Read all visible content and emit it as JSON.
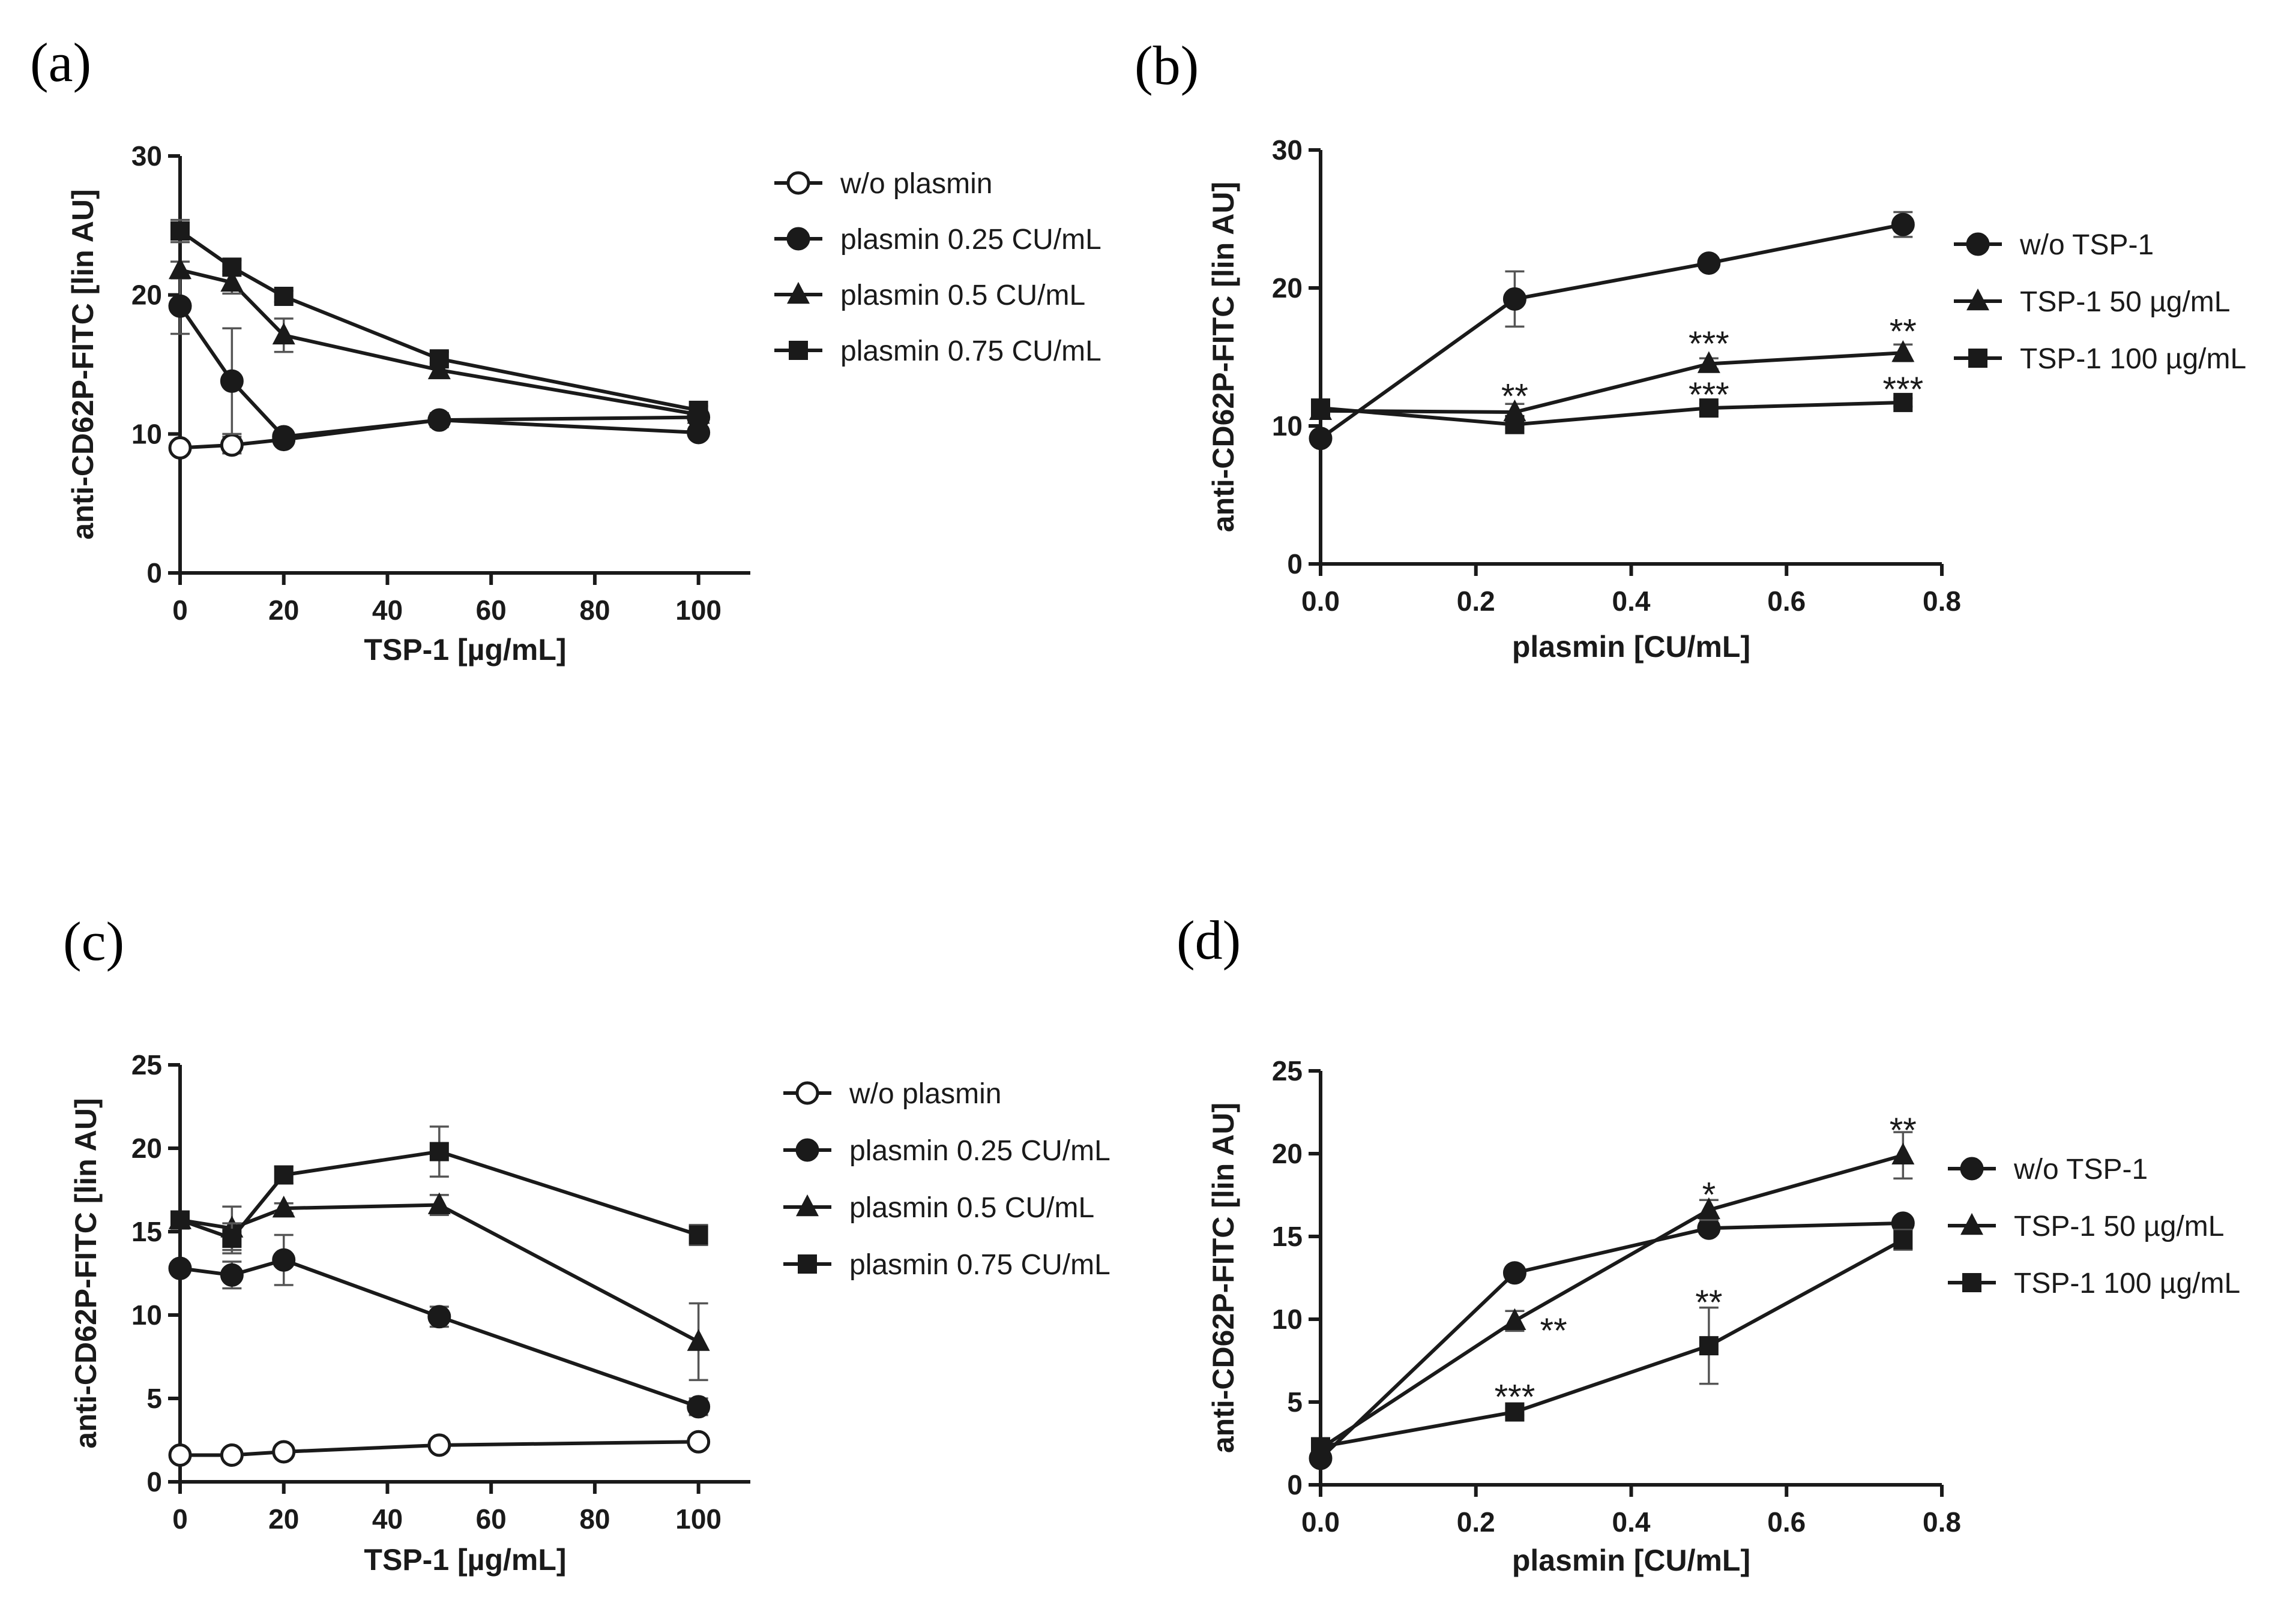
{
  "chart_data": [
    {
      "panel": "(a)",
      "type": "line",
      "xlabel": "TSP-1 [µg/mL]",
      "ylabel": "anti-CD62P-FITC [lin AU]",
      "xlim": [
        0,
        110
      ],
      "ylim": [
        0,
        30
      ],
      "xticks": [
        0,
        20,
        40,
        60,
        80,
        100
      ],
      "yticks": [
        0,
        10,
        20,
        30
      ],
      "series": [
        {
          "name": "w/o plasmin",
          "marker": "circle-open",
          "x": [
            0,
            10,
            20,
            50,
            100
          ],
          "y": [
            9.0,
            9.2,
            9.6,
            11.0,
            11.2
          ],
          "err": [
            0.3,
            0.6,
            0.3,
            0.5,
            0.3
          ]
        },
        {
          "name": "plasmin 0.25 CU/mL",
          "marker": "circle",
          "x": [
            0,
            10,
            20,
            50,
            100
          ],
          "y": [
            19.2,
            13.8,
            9.8,
            11.0,
            10.1
          ],
          "err": [
            2.0,
            3.8,
            0.4,
            0.5,
            0.3
          ]
        },
        {
          "name": "plasmin 0.5 CU/mL",
          "marker": "triangle",
          "x": [
            0,
            10,
            20,
            50,
            100
          ],
          "y": [
            21.8,
            20.9,
            17.1,
            14.6,
            11.4
          ],
          "err": [
            0.6,
            0.8,
            1.2,
            0.5,
            0.3
          ]
        },
        {
          "name": "plasmin 0.75 CU/mL",
          "marker": "square",
          "x": [
            0,
            10,
            20,
            50,
            100
          ],
          "y": [
            24.6,
            22.0,
            19.9,
            15.4,
            11.7
          ],
          "err": [
            0.8,
            0.5,
            0.4,
            0.5,
            0.3
          ]
        }
      ],
      "annotations": []
    },
    {
      "panel": "(b)",
      "type": "line",
      "xlabel": "plasmin [CU/mL]",
      "ylabel": "anti-CD62P-FITC [lin AU]",
      "xlim": [
        0,
        0.8
      ],
      "ylim": [
        0,
        30
      ],
      "xticks": [
        "0.0",
        "0.2",
        "0.4",
        "0.6",
        "0.8"
      ],
      "yticks": [
        0,
        10,
        20,
        30
      ],
      "series": [
        {
          "name": "w/o TSP-1",
          "marker": "circle",
          "x": [
            0,
            0.25,
            0.5,
            0.75
          ],
          "y": [
            9.1,
            19.2,
            21.8,
            24.6
          ],
          "err": [
            0.3,
            2.0,
            0.4,
            0.9
          ]
        },
        {
          "name": "TSP-1 50 µg/mL",
          "marker": "triangle",
          "x": [
            0,
            0.25,
            0.5,
            0.75
          ],
          "y": [
            11.1,
            11.0,
            14.5,
            15.3
          ],
          "err": [
            0.3,
            0.6,
            0.4,
            0.6
          ]
        },
        {
          "name": "TSP-1 100 µg/mL",
          "marker": "square",
          "x": [
            0,
            0.25,
            0.5,
            0.75
          ],
          "y": [
            11.3,
            10.1,
            11.3,
            11.7
          ],
          "err": [
            0.3,
            0.3,
            0.3,
            0.3
          ]
        }
      ],
      "annotations": [
        {
          "text": "**",
          "x": 0.25,
          "y": 12.5
        },
        {
          "text": "***",
          "x": 0.5,
          "y": 16.3
        },
        {
          "text": "**",
          "x": 0.75,
          "y": 17.2
        },
        {
          "text": "***",
          "x": 0.5,
          "y": 12.6
        },
        {
          "text": "***",
          "x": 0.75,
          "y": 13.0
        }
      ]
    },
    {
      "panel": "(c)",
      "type": "line",
      "xlabel": "TSP-1 [µg/mL]",
      "ylabel": "anti-CD62P-FITC [lin AU]",
      "xlim": [
        0,
        110
      ],
      "ylim": [
        0,
        25
      ],
      "xticks": [
        0,
        20,
        40,
        60,
        80,
        100
      ],
      "yticks": [
        0,
        5,
        10,
        15,
        20,
        25
      ],
      "series": [
        {
          "name": "w/o plasmin",
          "marker": "circle-open",
          "x": [
            0,
            10,
            20,
            50,
            100
          ],
          "y": [
            1.6,
            1.6,
            1.8,
            2.2,
            2.4
          ],
          "err": [
            0.1,
            0.1,
            0.1,
            0.1,
            0.1
          ]
        },
        {
          "name": "plasmin 0.25 CU/mL",
          "marker": "circle",
          "x": [
            0,
            10,
            20,
            50,
            100
          ],
          "y": [
            12.8,
            12.4,
            13.3,
            9.9,
            4.5
          ],
          "err": [
            0.3,
            0.8,
            1.5,
            0.6,
            0.5
          ]
        },
        {
          "name": "plasmin 0.5 CU/mL",
          "marker": "triangle",
          "x": [
            0,
            10,
            20,
            50,
            100
          ],
          "y": [
            15.7,
            15.2,
            16.4,
            16.6,
            8.4
          ],
          "err": [
            0.3,
            1.3,
            0.3,
            0.6,
            2.3
          ]
        },
        {
          "name": "plasmin 0.75 CU/mL",
          "marker": "square",
          "x": [
            0,
            10,
            20,
            50,
            100
          ],
          "y": [
            15.7,
            14.6,
            18.4,
            19.8,
            14.8
          ],
          "err": [
            0.3,
            0.9,
            0.5,
            1.5,
            0.6
          ]
        }
      ],
      "annotations": []
    },
    {
      "panel": "(d)",
      "type": "line",
      "xlabel": "plasmin [CU/mL]",
      "ylabel": "anti-CD62P-FITC [lin AU]",
      "xlim": [
        0,
        0.8
      ],
      "ylim": [
        0,
        25
      ],
      "xticks": [
        "0.0",
        "0.2",
        "0.4",
        "0.6",
        "0.8"
      ],
      "yticks": [
        0,
        5,
        10,
        15,
        20,
        25
      ],
      "series": [
        {
          "name": "w/o TSP-1",
          "marker": "circle",
          "x": [
            0,
            0.25,
            0.5,
            0.75
          ],
          "y": [
            1.6,
            12.8,
            15.5,
            15.8
          ],
          "err": [
            0.1,
            0.2,
            0.3,
            0.3
          ]
        },
        {
          "name": "TSP-1 50 µg/mL",
          "marker": "triangle",
          "x": [
            0,
            0.25,
            0.5,
            0.75
          ],
          "y": [
            2.2,
            9.9,
            16.6,
            19.9
          ],
          "err": [
            0.1,
            0.6,
            0.6,
            1.4
          ]
        },
        {
          "name": "TSP-1 100 µg/mL",
          "marker": "square",
          "x": [
            0,
            0.25,
            0.5,
            0.75
          ],
          "y": [
            2.3,
            4.4,
            8.4,
            14.8
          ],
          "err": [
            0.1,
            0.2,
            2.3,
            0.6
          ]
        }
      ],
      "annotations": [
        {
          "text": "**",
          "x": 0.75,
          "y": 21.7
        },
        {
          "text": "*",
          "x": 0.5,
          "y": 17.8
        },
        {
          "text": "**",
          "x": 0.3,
          "y": 9.6
        },
        {
          "text": "**",
          "x": 0.5,
          "y": 11.3
        },
        {
          "text": "***",
          "x": 0.25,
          "y": 5.6
        }
      ]
    }
  ]
}
